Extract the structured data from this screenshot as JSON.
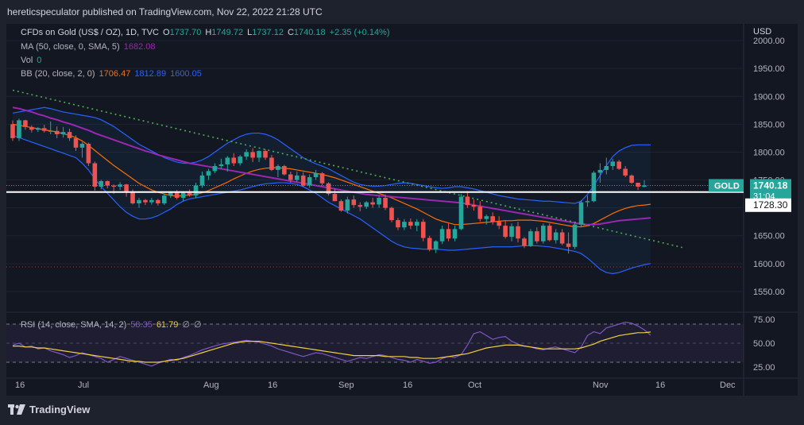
{
  "header": {
    "publish_line": "hereticspeculator published on TradingView.com, Nov 22, 2022 21:28 UTC"
  },
  "legend": {
    "main": {
      "symbol": "CFDs on Gold (US$ / OZ), 1D, TVC",
      "o_label": "O",
      "o": "1737.70",
      "h_label": "H",
      "h": "1749.72",
      "l_label": "L",
      "l": "1737.12",
      "c_label": "C",
      "c": "1740.18",
      "change": "+2.35 (+0.14%)"
    },
    "ma": {
      "label": "MA (50, close, 0, SMA, 5)",
      "value": "1682.08"
    },
    "vol": {
      "label": "Vol",
      "value": "0"
    },
    "bb": {
      "label": "BB (20, close, 2, 0)",
      "basis": "1706.47",
      "upper": "1812.89",
      "lower": "1600.05"
    },
    "rsi": {
      "label": "RSI (14, close, SMA, 14, 2)",
      "rsi": "58.35",
      "sma": "61.79",
      "na1": "∅",
      "na2": "∅"
    }
  },
  "footer": {
    "brand": "TradingView"
  },
  "colors": {
    "bg": "#131722",
    "up": "#26a69a",
    "down": "#ef5350",
    "ma": "#9c27b0",
    "bb_basis": "#ff6d00",
    "bb_band": "#2962ff",
    "trend": "#4caf50",
    "rsi": "#7e57c2",
    "rsi_sma": "#f4d03f",
    "support": "#ffffff",
    "text": "#b2b5be"
  },
  "chart_data": {
    "type": "candlestick",
    "symbol": "GOLD",
    "price_axis": {
      "unit": "USD",
      "ticks": [
        1550,
        1600,
        1650,
        1700,
        1750,
        1800,
        1850,
        1900,
        1950,
        2000
      ],
      "range": [
        1520,
        2030
      ]
    },
    "time_axis": {
      "ticks": [
        "16",
        "Jul",
        "Aug",
        "16",
        "Sep",
        "16",
        "Oct",
        "Nov",
        "16",
        "Dec"
      ]
    },
    "last_price": {
      "label": "GOLD",
      "value": "1740.18",
      "countdown": "31:04"
    },
    "horizontal_line": {
      "value": "1728.30"
    },
    "dotted_level": 1594,
    "candles": [
      [
        1850,
        1857,
        1820,
        1825
      ],
      [
        1825,
        1860,
        1820,
        1857
      ],
      [
        1857,
        1858,
        1840,
        1845
      ],
      [
        1845,
        1848,
        1835,
        1840
      ],
      [
        1840,
        1845,
        1836,
        1843
      ],
      [
        1843,
        1849,
        1835,
        1838
      ],
      [
        1838,
        1855,
        1832,
        1838
      ],
      [
        1838,
        1846,
        1825,
        1832
      ],
      [
        1832,
        1845,
        1826,
        1836
      ],
      [
        1836,
        1842,
        1820,
        1825
      ],
      [
        1825,
        1830,
        1802,
        1808
      ],
      [
        1808,
        1818,
        1790,
        1815
      ],
      [
        1815,
        1817,
        1775,
        1780
      ],
      [
        1780,
        1783,
        1731,
        1738
      ],
      [
        1738,
        1750,
        1733,
        1748
      ],
      [
        1748,
        1749,
        1735,
        1740
      ],
      [
        1740,
        1742,
        1725,
        1738
      ],
      [
        1738,
        1746,
        1732,
        1742
      ],
      [
        1742,
        1743,
        1720,
        1728
      ],
      [
        1728,
        1733,
        1706,
        1708
      ],
      [
        1708,
        1718,
        1700,
        1714
      ],
      [
        1714,
        1716,
        1705,
        1710
      ],
      [
        1710,
        1718,
        1706,
        1714
      ],
      [
        1714,
        1716,
        1704,
        1708
      ],
      [
        1708,
        1725,
        1705,
        1722
      ],
      [
        1722,
        1730,
        1718,
        1728
      ],
      [
        1728,
        1732,
        1715,
        1718
      ],
      [
        1718,
        1730,
        1712,
        1727
      ],
      [
        1727,
        1733,
        1720,
        1722
      ],
      [
        1722,
        1745,
        1718,
        1740
      ],
      [
        1740,
        1765,
        1736,
        1758
      ],
      [
        1758,
        1770,
        1750,
        1766
      ],
      [
        1766,
        1780,
        1762,
        1775
      ],
      [
        1775,
        1788,
        1770,
        1778
      ],
      [
        1778,
        1793,
        1765,
        1790
      ],
      [
        1790,
        1798,
        1775,
        1780
      ],
      [
        1780,
        1795,
        1776,
        1792
      ],
      [
        1792,
        1805,
        1786,
        1800
      ],
      [
        1800,
        1807,
        1782,
        1790
      ],
      [
        1790,
        1803,
        1782,
        1802
      ],
      [
        1802,
        1805,
        1786,
        1790
      ],
      [
        1790,
        1795,
        1766,
        1768
      ],
      [
        1768,
        1778,
        1755,
        1775
      ],
      [
        1775,
        1777,
        1758,
        1760
      ],
      [
        1760,
        1765,
        1745,
        1750
      ],
      [
        1750,
        1765,
        1746,
        1758
      ],
      [
        1758,
        1764,
        1737,
        1740
      ],
      [
        1740,
        1760,
        1736,
        1755
      ],
      [
        1755,
        1768,
        1750,
        1762
      ],
      [
        1762,
        1764,
        1740,
        1744
      ],
      [
        1744,
        1746,
        1722,
        1725
      ],
      [
        1725,
        1735,
        1712,
        1712
      ],
      [
        1712,
        1715,
        1693,
        1695
      ],
      [
        1695,
        1720,
        1690,
        1715
      ],
      [
        1715,
        1722,
        1700,
        1705
      ],
      [
        1705,
        1710,
        1694,
        1702
      ],
      [
        1702,
        1712,
        1698,
        1710
      ],
      [
        1710,
        1718,
        1700,
        1706
      ],
      [
        1706,
        1722,
        1700,
        1718
      ],
      [
        1718,
        1724,
        1696,
        1700
      ],
      [
        1700,
        1702,
        1674,
        1678
      ],
      [
        1678,
        1682,
        1660,
        1665
      ],
      [
        1665,
        1680,
        1660,
        1675
      ],
      [
        1675,
        1681,
        1662,
        1668
      ],
      [
        1668,
        1680,
        1658,
        1675
      ],
      [
        1675,
        1680,
        1640,
        1646
      ],
      [
        1646,
        1650,
        1622,
        1625
      ],
      [
        1625,
        1642,
        1619,
        1640
      ],
      [
        1640,
        1668,
        1635,
        1662
      ],
      [
        1662,
        1672,
        1640,
        1645
      ],
      [
        1645,
        1668,
        1640,
        1662
      ],
      [
        1662,
        1725,
        1660,
        1720
      ],
      [
        1720,
        1730,
        1700,
        1705
      ],
      [
        1705,
        1715,
        1695,
        1702
      ],
      [
        1702,
        1712,
        1675,
        1680
      ],
      [
        1680,
        1688,
        1670,
        1685
      ],
      [
        1685,
        1692,
        1670,
        1675
      ],
      [
        1675,
        1685,
        1662,
        1668
      ],
      [
        1668,
        1678,
        1645,
        1648
      ],
      [
        1648,
        1672,
        1640,
        1667
      ],
      [
        1667,
        1675,
        1638,
        1645
      ],
      [
        1645,
        1648,
        1628,
        1632
      ],
      [
        1632,
        1662,
        1630,
        1658
      ],
      [
        1658,
        1665,
        1636,
        1640
      ],
      [
        1640,
        1672,
        1636,
        1668
      ],
      [
        1668,
        1672,
        1640,
        1642
      ],
      [
        1642,
        1662,
        1636,
        1656
      ],
      [
        1656,
        1662,
        1633,
        1636
      ],
      [
        1636,
        1656,
        1618,
        1630
      ],
      [
        1630,
        1675,
        1626,
        1670
      ],
      [
        1670,
        1714,
        1665,
        1710
      ],
      [
        1710,
        1722,
        1702,
        1712
      ],
      [
        1712,
        1766,
        1710,
        1763
      ],
      [
        1763,
        1780,
        1745,
        1768
      ],
      [
        1768,
        1790,
        1760,
        1775
      ],
      [
        1775,
        1788,
        1768,
        1783
      ],
      [
        1783,
        1786,
        1768,
        1770
      ],
      [
        1770,
        1775,
        1755,
        1758
      ],
      [
        1758,
        1760,
        1743,
        1745
      ],
      [
        1745,
        1745,
        1732,
        1738
      ],
      [
        1737.7,
        1749.72,
        1737.12,
        1740.18
      ]
    ],
    "ma_50": [
      1880,
      1878,
      1875,
      1872,
      1868,
      1865,
      1861,
      1858,
      1854,
      1851,
      1847,
      1843,
      1839,
      1834,
      1830,
      1826,
      1822,
      1818,
      1814,
      1810,
      1806,
      1802,
      1799,
      1795,
      1792,
      1789,
      1786,
      1783,
      1780,
      1778,
      1776,
      1774,
      1772,
      1770,
      1768,
      1766,
      1764,
      1762,
      1760,
      1758,
      1756,
      1754,
      1752,
      1750,
      1748,
      1746,
      1744,
      1742,
      1740,
      1738,
      1736,
      1734,
      1732,
      1730,
      1728,
      1726,
      1724,
      1723,
      1722,
      1721,
      1720,
      1719,
      1718,
      1717,
      1716,
      1715,
      1714,
      1713,
      1712,
      1711,
      1710,
      1709,
      1707,
      1705,
      1703,
      1701,
      1699,
      1697,
      1695,
      1693,
      1691,
      1689,
      1687,
      1685,
      1683,
      1681,
      1679,
      1677,
      1675,
      1673,
      1671,
      1670,
      1670,
      1671,
      1673,
      1675,
      1677,
      1678,
      1679,
      1680,
      1681,
      1682.08
    ],
    "bb_basis": [
      1850,
      1848,
      1846,
      1844,
      1842,
      1840,
      1838,
      1836,
      1833,
      1830,
      1826,
      1820,
      1812,
      1803,
      1794,
      1785,
      1776,
      1768,
      1760,
      1752,
      1744,
      1738,
      1732,
      1728,
      1725,
      1722,
      1721,
      1722,
      1723,
      1724,
      1727,
      1731,
      1736,
      1741,
      1746,
      1752,
      1757,
      1762,
      1766,
      1769,
      1771,
      1772,
      1772,
      1771,
      1770,
      1768,
      1766,
      1764,
      1762,
      1760,
      1757,
      1754,
      1750,
      1746,
      1742,
      1738,
      1734,
      1730,
      1726,
      1722,
      1718,
      1713,
      1708,
      1703,
      1698,
      1692,
      1686,
      1680,
      1676,
      1673,
      1670,
      1670,
      1671,
      1672,
      1673,
      1674,
      1675,
      1676,
      1677,
      1677,
      1678,
      1678,
      1678,
      1677,
      1676,
      1674,
      1672,
      1670,
      1668,
      1666,
      1666,
      1668,
      1672,
      1678,
      1684,
      1690,
      1695,
      1699,
      1702,
      1704,
      1705,
      1706.47
    ],
    "bb_upper": [
      1870,
      1872,
      1874,
      1876,
      1878,
      1880,
      1878,
      1875,
      1872,
      1870,
      1868,
      1866,
      1864,
      1862,
      1858,
      1852,
      1846,
      1838,
      1830,
      1822,
      1814,
      1808,
      1802,
      1796,
      1790,
      1786,
      1782,
      1780,
      1780,
      1782,
      1786,
      1792,
      1800,
      1808,
      1816,
      1822,
      1828,
      1832,
      1834,
      1834,
      1832,
      1828,
      1822,
      1814,
      1806,
      1798,
      1790,
      1784,
      1779,
      1775,
      1770,
      1764,
      1758,
      1752,
      1746,
      1742,
      1740,
      1739,
      1739,
      1740,
      1742,
      1744,
      1745,
      1744,
      1742,
      1740,
      1738,
      1736,
      1735,
      1736,
      1738,
      1738,
      1736,
      1734,
      1731,
      1728,
      1725,
      1722,
      1720,
      1718,
      1716,
      1715,
      1714,
      1713,
      1712,
      1712,
      1711,
      1710,
      1709,
      1708,
      1712,
      1724,
      1740,
      1758,
      1776,
      1792,
      1802,
      1808,
      1812,
      1813,
      1813,
      1812.89
    ],
    "bb_lower": [
      1830,
      1826,
      1822,
      1818,
      1814,
      1810,
      1806,
      1802,
      1798,
      1794,
      1790,
      1780,
      1768,
      1752,
      1738,
      1726,
      1714,
      1702,
      1692,
      1685,
      1680,
      1680,
      1682,
      1686,
      1692,
      1698,
      1706,
      1712,
      1716,
      1718,
      1720,
      1722,
      1724,
      1726,
      1728,
      1730,
      1732,
      1735,
      1738,
      1741,
      1743,
      1744,
      1745,
      1745,
      1744,
      1742,
      1738,
      1732,
      1726,
      1718,
      1710,
      1704,
      1698,
      1692,
      1686,
      1680,
      1672,
      1664,
      1656,
      1648,
      1640,
      1634,
      1630,
      1628,
      1627,
      1626,
      1626,
      1626,
      1625,
      1624,
      1624,
      1625,
      1626,
      1627,
      1628,
      1629,
      1630,
      1630,
      1630,
      1630,
      1631,
      1632,
      1632,
      1632,
      1631,
      1630,
      1628,
      1626,
      1624,
      1622,
      1618,
      1610,
      1600,
      1590,
      1584,
      1582,
      1584,
      1588,
      1592,
      1595,
      1598,
      1600.05
    ],
    "trendline": {
      "from": [
        0,
        1911
      ],
      "to": [
        106,
        1629
      ]
    },
    "rsi_axis": {
      "ticks": [
        25,
        50,
        75
      ],
      "range": [
        20,
        80
      ],
      "bands": [
        30,
        70
      ]
    },
    "rsi": [
      48,
      50,
      46,
      47,
      44,
      45,
      42,
      40,
      38,
      35,
      37,
      40,
      38,
      36,
      34,
      30,
      33,
      36,
      34,
      32,
      30,
      28,
      26,
      29,
      31,
      33,
      32,
      35,
      37,
      40,
      43,
      45,
      47,
      49,
      50,
      51,
      52,
      53,
      52,
      51,
      49,
      47,
      44,
      42,
      40,
      38,
      36,
      38,
      40,
      39,
      37,
      35,
      33,
      31,
      33,
      35,
      34,
      36,
      38,
      37,
      35,
      33,
      32,
      30,
      33,
      31,
      29,
      30,
      34,
      36,
      35,
      38,
      48,
      60,
      62,
      58,
      54,
      56,
      57,
      52,
      49,
      47,
      46,
      44,
      43,
      45,
      46,
      44,
      42,
      40,
      46,
      58,
      62,
      60,
      66,
      68,
      70,
      72,
      71,
      68,
      64,
      58.35
    ],
    "rsi_sma": [
      47,
      47,
      46,
      46,
      45,
      45,
      44,
      43,
      42,
      41,
      40,
      39,
      38,
      37,
      36,
      35,
      34,
      33,
      32,
      31,
      31,
      30,
      30,
      30,
      31,
      32,
      33,
      34,
      36,
      38,
      40,
      42,
      44,
      46,
      48,
      50,
      51,
      52,
      52,
      52,
      51,
      50,
      49,
      48,
      47,
      46,
      45,
      44,
      43,
      42,
      41,
      40,
      39,
      38,
      37,
      37,
      37,
      37,
      37,
      36,
      36,
      36,
      36,
      35,
      35,
      34,
      34,
      34,
      35,
      36,
      37,
      38,
      39,
      41,
      43,
      45,
      46,
      47,
      48,
      48,
      48,
      47,
      46,
      45,
      44,
      44,
      44,
      44,
      44,
      44,
      45,
      47,
      49,
      52,
      54,
      56,
      58,
      59,
      60,
      61,
      61,
      61.79
    ]
  }
}
